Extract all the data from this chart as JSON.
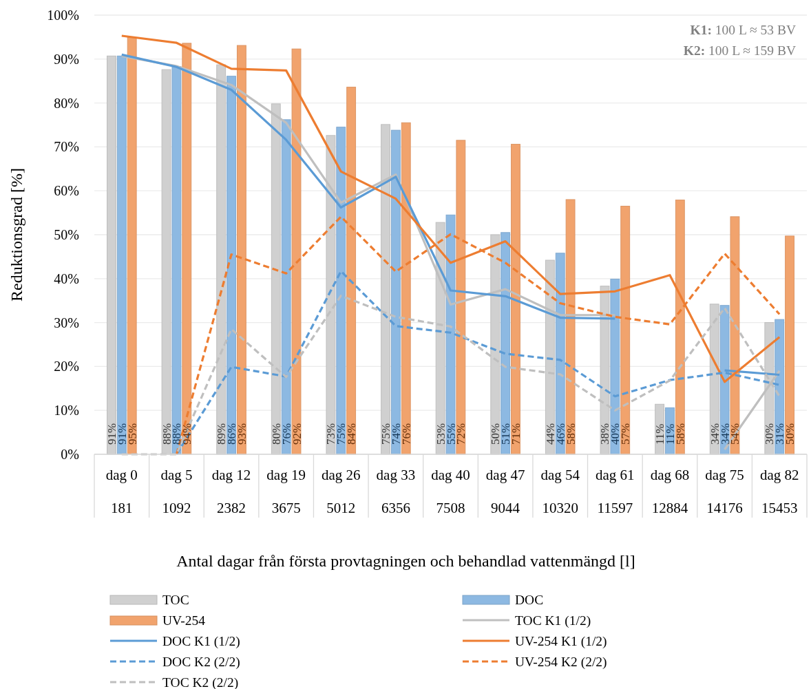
{
  "chart_data": {
    "type": "bar",
    "categories": [
      "dag 0\n181",
      "dag 5\n1092",
      "dag 12\n2382",
      "dag 19\n3675",
      "dag 26\n5012",
      "dag 33\n6356",
      "dag 40\n7508",
      "dag 47\n9044",
      "dag 54\n10320",
      "dag 61\n11597",
      "dag 68\n12884",
      "dag 75\n14176",
      "dag 82\n15453"
    ],
    "series": [
      {
        "name": "TOC",
        "color": "#d0d0d0",
        "values": [
          90.7,
          87.6,
          88.7,
          79.8,
          72.6,
          75.1,
          52.8,
          50.0,
          44.2,
          38.3,
          11.4,
          34.2,
          30.0
        ],
        "value_labels": [
          "91%",
          "88%",
          "89%",
          "80%",
          "73%",
          "75%",
          "53%",
          "50%",
          "44%",
          "38%",
          "11%",
          "34%",
          "30%"
        ]
      },
      {
        "name": "DOC",
        "color": "#8db9e2",
        "values": [
          90.7,
          88.3,
          86.1,
          76.2,
          74.5,
          73.8,
          54.5,
          50.5,
          45.8,
          39.9,
          10.6,
          33.9,
          30.7
        ],
        "value_labels": [
          "91%",
          "88%",
          "86%",
          "76%",
          "75%",
          "74%",
          "55%",
          "51%",
          "46%",
          "40%",
          "11%",
          "34%",
          "31%"
        ]
      },
      {
        "name": "UV-254",
        "color": "#f1a36d",
        "values": [
          94.9,
          93.6,
          93.1,
          92.3,
          83.6,
          75.5,
          71.5,
          70.6,
          58.0,
          56.5,
          57.9,
          54.1,
          49.7
        ],
        "value_labels": [
          "95%",
          "94%",
          "93%",
          "92%",
          "84%",
          "76%",
          "72%",
          "71%",
          "58%",
          "57%",
          "58%",
          "54%",
          "50%"
        ]
      },
      {
        "name": "TOC K1 (1/2)",
        "type": "line",
        "line_style": "solid",
        "color": "#bfbfbf",
        "values": [
          90.7,
          88.4,
          84.1,
          75.5,
          57.3,
          63.7,
          34.1,
          37.6,
          31.7,
          31.7,
          null,
          1.1,
          19.0
        ]
      },
      {
        "name": "DOC K1 (1/2)",
        "type": "line",
        "line_style": "solid",
        "color": "#5b9bd5",
        "values": [
          91.0,
          88.2,
          83.0,
          71.6,
          56.2,
          63.2,
          37.3,
          36.0,
          31.1,
          30.9,
          null,
          19.1,
          18.1
        ]
      },
      {
        "name": "UV-254 K1 (1/2)",
        "type": "line",
        "line_style": "solid",
        "color": "#ed7d31",
        "values": [
          95.3,
          93.7,
          87.8,
          87.4,
          64.4,
          58.2,
          43.6,
          48.5,
          36.5,
          37.1,
          40.8,
          16.5,
          26.7
        ]
      },
      {
        "name": "DOC K2 (2/2)",
        "type": "line",
        "line_style": "dashed",
        "color": "#5b9bd5",
        "values": [
          null,
          0,
          19.9,
          17.7,
          41.7,
          29.2,
          27.7,
          22.9,
          21.5,
          13.2,
          16.9,
          18.6,
          15.8
        ]
      },
      {
        "name": "UV-254 K2 (2/2)",
        "type": "line",
        "line_style": "dashed",
        "color": "#ed7d31",
        "values": [
          null,
          0,
          45.5,
          41.2,
          54.1,
          41.6,
          50.1,
          43.6,
          34.4,
          31.3,
          29.6,
          45.7,
          31.9
        ]
      },
      {
        "name": "TOC K2 (2/2)",
        "type": "line",
        "line_style": "dashed",
        "color": "#bfbfbf",
        "values": [
          0,
          0,
          28.5,
          17.6,
          36.1,
          31.3,
          29.1,
          19.9,
          18.2,
          10.0,
          16.8,
          33.3,
          13.2
        ]
      }
    ],
    "ylim": [
      0,
      100
    ],
    "yticks": [
      {
        "value": 0,
        "label": "0%"
      },
      {
        "value": 10,
        "label": "10%"
      },
      {
        "value": 20,
        "label": "20%"
      },
      {
        "value": 30,
        "label": "30%"
      },
      {
        "value": 40,
        "label": "40%"
      },
      {
        "value": 50,
        "label": "50%"
      },
      {
        "value": 60,
        "label": "60%"
      },
      {
        "value": 70,
        "label": "70%"
      },
      {
        "value": 80,
        "label": "80%"
      },
      {
        "value": 90,
        "label": "90%"
      },
      {
        "value": 100,
        "label": "100%"
      }
    ],
    "xlabel": "Antal dagar från första provtagningen och behandlad vattenmängd [l]",
    "ylabel": "Reduktionsgrad [%]",
    "annotations": [
      "K1: 100 L ≈ 53 BV",
      "K2: 100 L ≈ 159 BV"
    ],
    "grid": "y",
    "legend": "bottom"
  }
}
